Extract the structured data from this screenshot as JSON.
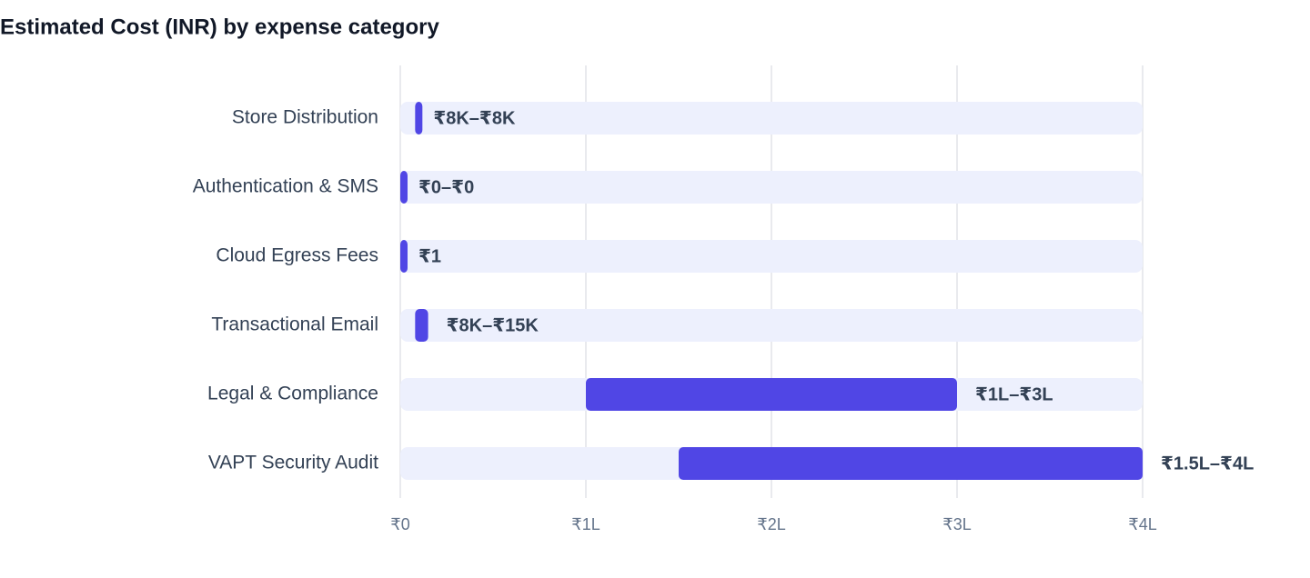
{
  "chart_data": {
    "type": "range-bar",
    "title": "Estimated Cost (INR) by expense category",
    "categories": [
      "Store Distribution",
      "Authentication & SMS",
      "Cloud Egress Fees",
      "Transactional Email",
      "Legal & Compliance",
      "VAPT Security Audit"
    ],
    "low": [
      8000,
      0,
      1,
      8000,
      100000,
      150000
    ],
    "high": [
      8000,
      0,
      1,
      15000,
      300000,
      400000
    ],
    "value_labels": [
      "₹8K–₹8K",
      "₹0–₹0",
      "₹1",
      "₹8K–₹15K",
      "₹1L–₹3L",
      "₹1.5L–₹4L"
    ],
    "color": "#5046e5",
    "track_color": "#edf0fd",
    "xlim": [
      0,
      400000
    ],
    "xticks": [
      {
        "value": 0,
        "label": "₹0"
      },
      {
        "value": 100000,
        "label": "₹1L"
      },
      {
        "value": 200000,
        "label": "₹2L"
      },
      {
        "value": 300000,
        "label": "₹3L"
      },
      {
        "value": 400000,
        "label": "₹4L"
      }
    ],
    "grid": true
  }
}
